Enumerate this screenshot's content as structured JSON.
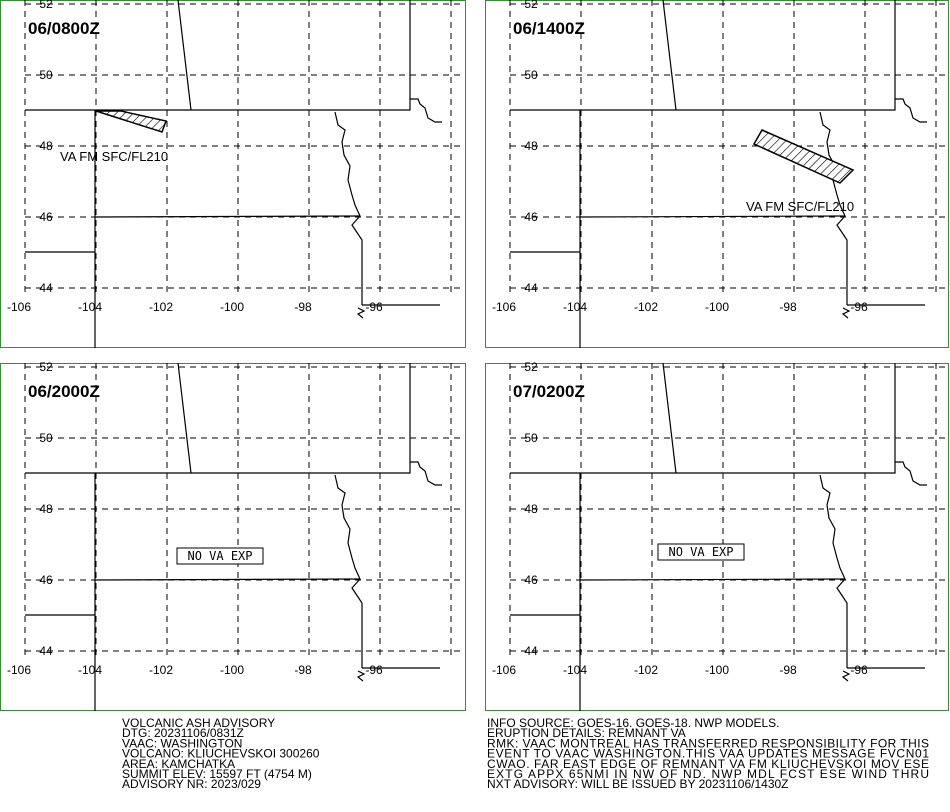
{
  "panels": [
    {
      "title": "06/0800Z",
      "annotation": "VA FM SFC/FL210"
    },
    {
      "title": "06/1400Z",
      "annotation": "VA FM SFC/FL210"
    },
    {
      "title": "06/2000Z",
      "annotation": "NO VA EXP"
    },
    {
      "title": "07/0200Z",
      "annotation": "NO VA EXP"
    }
  ],
  "lat_labels": [
    "52",
    "50",
    "48",
    "46",
    "44"
  ],
  "lon_labels": [
    "-106",
    "-104",
    "-102",
    "-100",
    "-98",
    "-96"
  ],
  "advisory_left": [
    "VOLCANIC ASH ADVISORY",
    "DTG: 20231106/0831Z",
    "VAAC: WASHINGTON",
    "VOLCANO: KLIUCHEVSKOI 300260",
    "AREA: KAMCHATKA",
    "SUMMIT ELEV: 15597 FT (4754 M)",
    "ADVISORY NR: 2023/029"
  ],
  "advisory_right": [
    "INFO SOURCE: GOES-16. GOES-18. NWP MODELS.",
    "ERUPTION DETAILS: REMNANT VA",
    "RMK: VAAC MONTREAL HAS TRANSFERRED RESPONSIBILITY FOR THIS",
    "EVENT TO VAAC WASHINGTON.THIS VAA UPDATES MESSAGE FVCN01",
    "CWAO. FAR EAST EDGE OF REMNANT VA FM KLIUCHEVSKOI MOV ESE",
    "EXTG APPX 65NMI IN NW OF ND. NWP MDL FCST ESE WIND THRU",
    "NXT ADVISORY: WILL BE ISSUED BY 20231106/1430Z"
  ]
}
